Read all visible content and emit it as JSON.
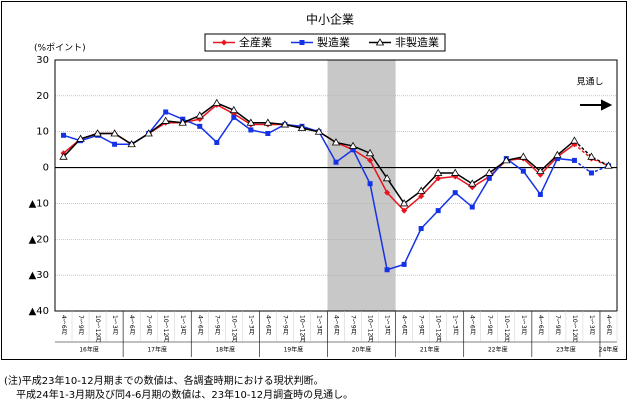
{
  "chart_data": {
    "type": "line",
    "title": "中小企業",
    "y_label": "(%ポイント)",
    "annotation": "見通し",
    "categories": [
      "4～6月",
      "7～9月",
      "10～12月",
      "1～3月",
      "4～6月",
      "7～9月",
      "10～12月",
      "1～3月",
      "4～6月",
      "7～9月",
      "10～12月",
      "1～3月",
      "4～6月",
      "7～9月",
      "10～12月",
      "1～3月",
      "4～6月",
      "7～9月",
      "10～12月",
      "1～3月",
      "4～6月",
      "7～9月",
      "10～12月",
      "1～3月",
      "4～6月",
      "7～9月",
      "10～12月",
      "1～3月",
      "4～6月",
      "7～9月",
      "10～12月",
      "1～3月",
      "4～6月"
    ],
    "year_labels": [
      "16年度",
      "17年度",
      "18年度",
      "19年度",
      "20年度",
      "21年度",
      "22年度",
      "23年度",
      "24年度"
    ],
    "series": [
      {
        "name": "全産業",
        "color": "#e8141e",
        "marker": "diamond",
        "values": [
          4,
          8,
          9.5,
          9.5,
          6.5,
          9.5,
          12.5,
          12.5,
          13.5,
          17.5,
          15,
          12,
          12,
          12,
          11,
          10,
          7,
          5,
          2,
          -7,
          -12,
          -8,
          -3,
          -2.5,
          -5.5,
          -2.5,
          2,
          2.5,
          -2,
          3,
          6.5,
          2.5,
          0.5
        ]
      },
      {
        "name": "製造業",
        "color": "#1432e6",
        "marker": "square",
        "values": [
          9,
          7.5,
          9,
          6.5,
          6.5,
          9.5,
          15.5,
          13.5,
          11.5,
          7,
          14,
          10.5,
          9.5,
          12,
          11.5,
          10,
          1.5,
          5,
          -4.5,
          -28.5,
          -27,
          -17,
          -12,
          -7,
          -11,
          -3,
          2.5,
          -1,
          -7.5,
          2.5,
          2,
          -1.5,
          0.5
        ]
      },
      {
        "name": "非製造業",
        "color": "#000000",
        "marker": "triangle",
        "values": [
          3,
          8,
          9.5,
          9.5,
          6.5,
          9.5,
          13,
          12.5,
          14.5,
          18,
          16,
          12.5,
          12.5,
          12,
          11,
          10,
          7,
          6,
          4,
          -3,
          -10,
          -6.5,
          -1.5,
          -1.5,
          -4.5,
          -1.5,
          2,
          3,
          -1,
          3.5,
          7.5,
          3,
          0.5
        ]
      }
    ],
    "ylim": [
      -40,
      30
    ],
    "yticks": [
      {
        "value": -40,
        "label": "▲40"
      },
      {
        "value": -30,
        "label": "▲30"
      },
      {
        "value": -20,
        "label": "▲20"
      },
      {
        "value": -10,
        "label": "▲10"
      },
      0,
      10,
      20,
      30
    ],
    "grid": true,
    "shaded_quarters": [
      16,
      19
    ],
    "forecast_from": 30,
    "notes": [
      "(注)平成23年10-12月期までの数値は、各調査時期における現状判断。",
      "平成24年1-3月期及び同4-6月期の数値は、23年10-12月調査時の見通し。"
    ]
  }
}
